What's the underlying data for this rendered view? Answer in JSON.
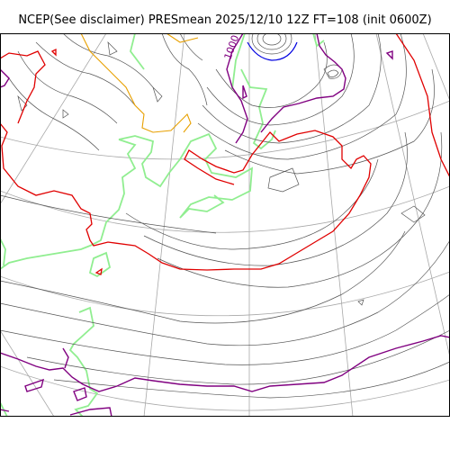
{
  "title": "NCEP(See disclaimer) PRESmean 2025/12/10 12Z FT=108 (init 0600Z)",
  "colors": {
    "background": "#ffffff",
    "frame": "#000000",
    "graticule": "#a8a8a8",
    "isobar": "#555555",
    "isobar_1020": "#e00000",
    "isobar_1010": "#800080",
    "isobar_1000": "#e8a000",
    "isobar_low": "#0000e0",
    "coastline": "#90ee90",
    "labels": "#800080"
  },
  "isobar_labels": [
    {
      "text": "1000"
    }
  ]
}
